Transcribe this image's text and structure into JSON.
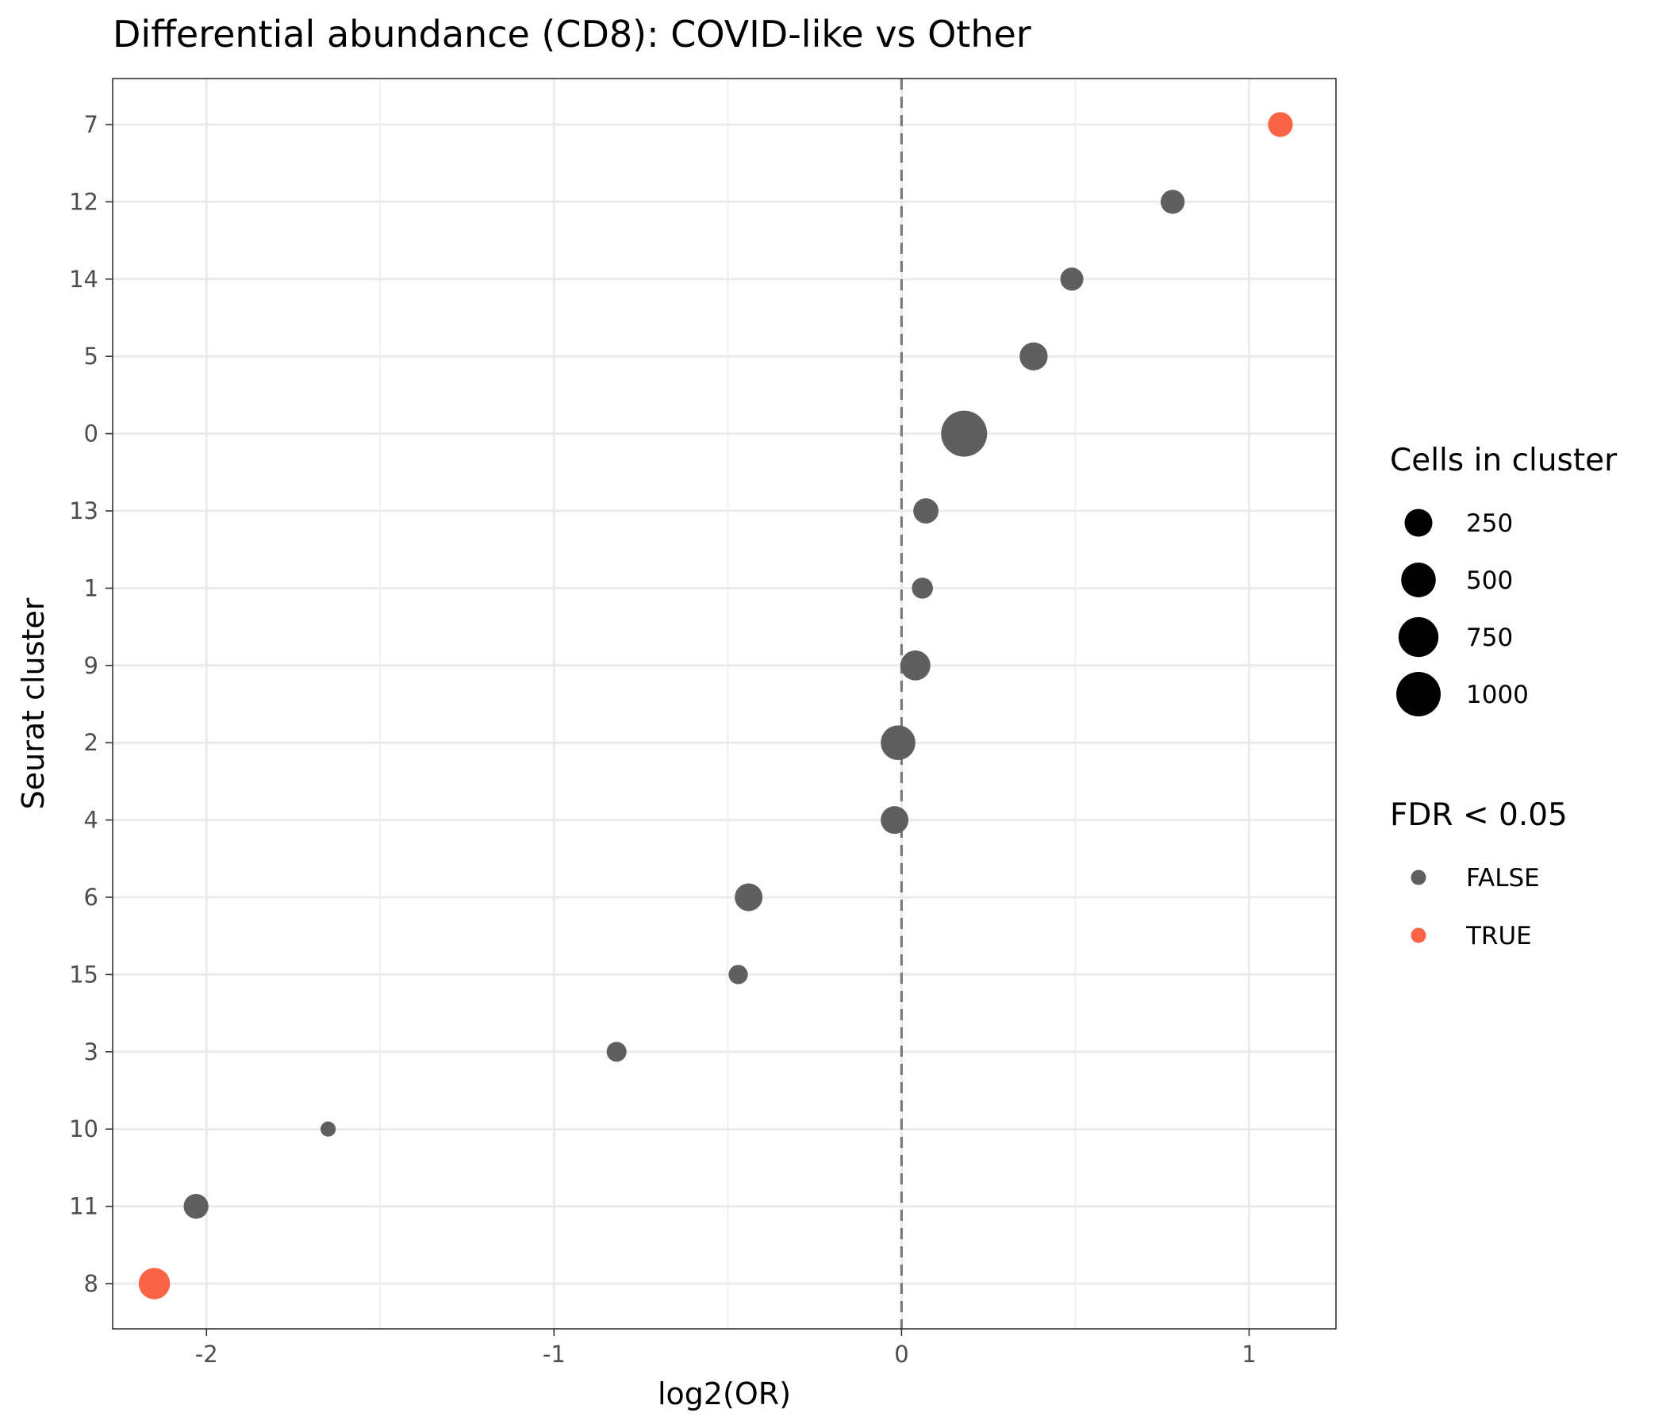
{
  "chart_data": {
    "type": "scatter",
    "title": "Differential abundance (CD8): COVID-like vs Other",
    "xlabel": "log2(OR)",
    "ylabel": "Seurat cluster",
    "xlim": [
      -2.27,
      1.25
    ],
    "xticks": [
      -2,
      -1,
      0,
      1
    ],
    "x_reference_line": 0,
    "categories": [
      "7",
      "12",
      "14",
      "5",
      "0",
      "13",
      "1",
      "9",
      "2",
      "4",
      "6",
      "15",
      "3",
      "10",
      "11",
      "8"
    ],
    "points": [
      {
        "cluster": "7",
        "x": 1.09,
        "cells": 170,
        "fdr": "TRUE"
      },
      {
        "cluster": "12",
        "x": 0.78,
        "cells": 150,
        "fdr": "FALSE"
      },
      {
        "cluster": "14",
        "x": 0.49,
        "cells": 130,
        "fdr": "FALSE"
      },
      {
        "cluster": "5",
        "x": 0.38,
        "cells": 260,
        "fdr": "FALSE"
      },
      {
        "cluster": "0",
        "x": 0.18,
        "cells": 1100,
        "fdr": "FALSE"
      },
      {
        "cluster": "13",
        "x": 0.07,
        "cells": 180,
        "fdr": "FALSE"
      },
      {
        "cluster": "1",
        "x": 0.06,
        "cells": 90,
        "fdr": "FALSE"
      },
      {
        "cluster": "9",
        "x": 0.04,
        "cells": 320,
        "fdr": "FALSE"
      },
      {
        "cluster": "2",
        "x": -0.01,
        "cells": 500,
        "fdr": "FALSE"
      },
      {
        "cluster": "4",
        "x": -0.02,
        "cells": 250,
        "fdr": "FALSE"
      },
      {
        "cluster": "6",
        "x": -0.44,
        "cells": 250,
        "fdr": "FALSE"
      },
      {
        "cluster": "15",
        "x": -0.47,
        "cells": 60,
        "fdr": "FALSE"
      },
      {
        "cluster": "3",
        "x": -0.82,
        "cells": 70,
        "fdr": "FALSE"
      },
      {
        "cluster": "10",
        "x": -1.65,
        "cells": 15,
        "fdr": "FALSE"
      },
      {
        "cluster": "11",
        "x": -2.03,
        "cells": 170,
        "fdr": "FALSE"
      },
      {
        "cluster": "8",
        "x": -2.15,
        "cells": 370,
        "fdr": "TRUE"
      }
    ],
    "legend": {
      "size_title": "Cells in cluster",
      "size_breaks": [
        250,
        500,
        750,
        1000
      ],
      "size_labels": [
        "250",
        "500",
        "750",
        "1000"
      ],
      "color_title": "FDR < 0.05",
      "color_entries": [
        {
          "label": "FALSE",
          "color": "#5f5f5f"
        },
        {
          "label": "TRUE",
          "color": "#fb6347"
        }
      ],
      "placement": "right"
    },
    "grid": true,
    "colors": {
      "FALSE": "#5f5f5f",
      "TRUE": "#fb6347"
    }
  }
}
